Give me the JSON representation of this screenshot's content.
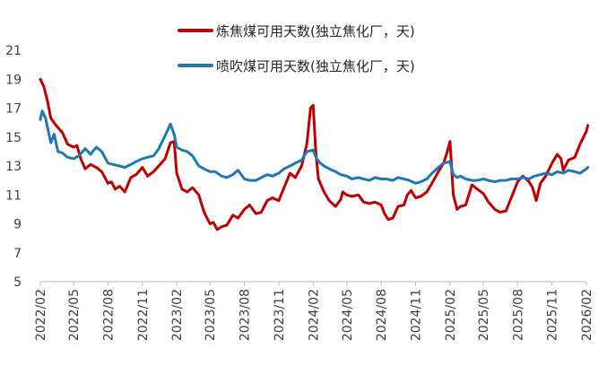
{
  "chart_data": {
    "type": "line",
    "title": "",
    "xlabel": "",
    "ylabel": "",
    "ylim": [
      5,
      21
    ],
    "yticks": [
      5,
      7,
      9,
      11,
      13,
      15,
      17,
      19,
      21
    ],
    "xlim": [
      "2022-02",
      "2026-02"
    ],
    "xtick_labels": [
      "2022/02",
      "2022/05",
      "2022/08",
      "2022/11",
      "2023/02",
      "2023/05",
      "2023/08",
      "2023/11",
      "2024/02",
      "2024/05",
      "2024/08",
      "2024/11",
      "2025/02",
      "2025/05",
      "2025/08",
      "2025/11",
      "2026/02"
    ],
    "grid": false,
    "legend_position": "top",
    "series": [
      {
        "name": "炼焦煤可用天数(独立焦化厂，天)",
        "color": "#c00000",
        "points": [
          [
            "2022-02-01",
            19.0
          ],
          [
            "2022-02-10",
            18.5
          ],
          [
            "2022-02-20",
            17.5
          ],
          [
            "2022-03-01",
            16.3
          ],
          [
            "2022-03-15",
            15.8
          ],
          [
            "2022-04-01",
            15.3
          ],
          [
            "2022-04-15",
            14.5
          ],
          [
            "2022-05-01",
            14.3
          ],
          [
            "2022-05-10",
            14.4
          ],
          [
            "2022-05-20",
            13.5
          ],
          [
            "2022-06-01",
            12.8
          ],
          [
            "2022-06-15",
            13.1
          ],
          [
            "2022-07-01",
            12.9
          ],
          [
            "2022-07-15",
            12.6
          ],
          [
            "2022-08-01",
            11.8
          ],
          [
            "2022-08-10",
            11.9
          ],
          [
            "2022-08-20",
            11.4
          ],
          [
            "2022-09-01",
            11.6
          ],
          [
            "2022-09-15",
            11.2
          ],
          [
            "2022-10-01",
            12.2
          ],
          [
            "2022-10-15",
            12.4
          ],
          [
            "2022-11-01",
            12.9
          ],
          [
            "2022-11-15",
            12.3
          ],
          [
            "2022-12-01",
            12.6
          ],
          [
            "2022-12-15",
            13.0
          ],
          [
            "2023-01-01",
            13.5
          ],
          [
            "2023-01-15",
            14.6
          ],
          [
            "2023-01-25",
            14.7
          ],
          [
            "2023-02-01",
            12.5
          ],
          [
            "2023-02-15",
            11.4
          ],
          [
            "2023-03-01",
            11.2
          ],
          [
            "2023-03-15",
            11.5
          ],
          [
            "2023-04-01",
            11.0
          ],
          [
            "2023-04-15",
            9.8
          ],
          [
            "2023-05-01",
            9.0
          ],
          [
            "2023-05-10",
            9.1
          ],
          [
            "2023-05-20",
            8.6
          ],
          [
            "2023-06-01",
            8.8
          ],
          [
            "2023-06-15",
            8.9
          ],
          [
            "2023-07-01",
            9.6
          ],
          [
            "2023-07-15",
            9.4
          ],
          [
            "2023-08-01",
            10.0
          ],
          [
            "2023-08-15",
            10.3
          ],
          [
            "2023-09-01",
            9.7
          ],
          [
            "2023-09-15",
            9.8
          ],
          [
            "2023-10-01",
            10.6
          ],
          [
            "2023-10-15",
            10.8
          ],
          [
            "2023-11-01",
            10.6
          ],
          [
            "2023-11-15",
            11.5
          ],
          [
            "2023-12-01",
            12.5
          ],
          [
            "2023-12-15",
            12.2
          ],
          [
            "2024-01-01",
            13.0
          ],
          [
            "2024-01-15",
            14.5
          ],
          [
            "2024-01-25",
            17.0
          ],
          [
            "2024-02-01",
            17.2
          ],
          [
            "2024-02-08",
            14.0
          ],
          [
            "2024-02-15",
            12.1
          ],
          [
            "2024-03-01",
            11.2
          ],
          [
            "2024-03-15",
            10.6
          ],
          [
            "2024-04-01",
            10.2
          ],
          [
            "2024-04-15",
            10.7
          ],
          [
            "2024-04-20",
            11.2
          ],
          [
            "2024-05-01",
            11.0
          ],
          [
            "2024-05-15",
            10.9
          ],
          [
            "2024-06-01",
            11.0
          ],
          [
            "2024-06-15",
            10.5
          ],
          [
            "2024-07-01",
            10.4
          ],
          [
            "2024-07-15",
            10.5
          ],
          [
            "2024-08-01",
            10.3
          ],
          [
            "2024-08-10",
            9.7
          ],
          [
            "2024-08-20",
            9.3
          ],
          [
            "2024-09-01",
            9.4
          ],
          [
            "2024-09-15",
            10.2
          ],
          [
            "2024-10-01",
            10.3
          ],
          [
            "2024-10-10",
            11.0
          ],
          [
            "2024-10-20",
            11.3
          ],
          [
            "2024-11-01",
            10.8
          ],
          [
            "2024-11-15",
            10.9
          ],
          [
            "2024-12-01",
            11.2
          ],
          [
            "2024-12-15",
            11.8
          ],
          [
            "2025-01-01",
            12.6
          ],
          [
            "2025-01-15",
            13.2
          ],
          [
            "2025-01-25",
            14.0
          ],
          [
            "2025-02-01",
            14.7
          ],
          [
            "2025-02-10",
            11.0
          ],
          [
            "2025-02-20",
            10.0
          ],
          [
            "2025-03-01",
            10.2
          ],
          [
            "2025-03-15",
            10.3
          ],
          [
            "2025-04-01",
            11.7
          ],
          [
            "2025-04-15",
            11.4
          ],
          [
            "2025-05-01",
            11.1
          ],
          [
            "2025-05-15",
            10.5
          ],
          [
            "2025-06-01",
            10.0
          ],
          [
            "2025-06-15",
            9.8
          ],
          [
            "2025-07-01",
            9.9
          ],
          [
            "2025-07-15",
            10.8
          ],
          [
            "2025-08-01",
            11.9
          ],
          [
            "2025-08-15",
            12.3
          ],
          [
            "2025-09-01",
            11.9
          ],
          [
            "2025-09-10",
            11.5
          ],
          [
            "2025-09-20",
            10.6
          ],
          [
            "2025-10-01",
            11.8
          ],
          [
            "2025-10-15",
            12.3
          ],
          [
            "2025-11-01",
            13.2
          ],
          [
            "2025-11-15",
            13.8
          ],
          [
            "2025-11-25",
            13.5
          ],
          [
            "2025-12-01",
            12.7
          ],
          [
            "2025-12-15",
            13.4
          ],
          [
            "2026-01-01",
            13.6
          ],
          [
            "2026-01-15",
            14.5
          ],
          [
            "2026-02-01",
            15.4
          ],
          [
            "2026-02-05",
            15.8
          ]
        ]
      },
      {
        "name": "喷吹煤可用天数(独立焦化厂，天)",
        "color": "#1f77b4",
        "points": [
          [
            "2022-02-01",
            16.2
          ],
          [
            "2022-02-06",
            16.8
          ],
          [
            "2022-02-15",
            16.3
          ],
          [
            "2022-03-01",
            14.6
          ],
          [
            "2022-03-10",
            15.2
          ],
          [
            "2022-03-20",
            14.0
          ],
          [
            "2022-04-01",
            13.9
          ],
          [
            "2022-04-15",
            13.6
          ],
          [
            "2022-05-01",
            13.5
          ],
          [
            "2022-05-15",
            13.7
          ],
          [
            "2022-06-01",
            14.2
          ],
          [
            "2022-06-15",
            13.8
          ],
          [
            "2022-07-01",
            14.3
          ],
          [
            "2022-07-15",
            14.0
          ],
          [
            "2022-08-01",
            13.2
          ],
          [
            "2022-08-15",
            13.1
          ],
          [
            "2022-09-01",
            13.0
          ],
          [
            "2022-09-15",
            12.9
          ],
          [
            "2022-10-01",
            13.1
          ],
          [
            "2022-10-15",
            13.3
          ],
          [
            "2022-11-01",
            13.5
          ],
          [
            "2022-11-15",
            13.6
          ],
          [
            "2022-12-01",
            13.7
          ],
          [
            "2022-12-15",
            14.2
          ],
          [
            "2023-01-01",
            15.1
          ],
          [
            "2023-01-15",
            15.9
          ],
          [
            "2023-01-25",
            15.2
          ],
          [
            "2023-02-01",
            14.3
          ],
          [
            "2023-02-15",
            14.1
          ],
          [
            "2023-03-01",
            14.0
          ],
          [
            "2023-03-15",
            13.7
          ],
          [
            "2023-04-01",
            13.0
          ],
          [
            "2023-04-15",
            12.8
          ],
          [
            "2023-05-01",
            12.6
          ],
          [
            "2023-05-15",
            12.6
          ],
          [
            "2023-06-01",
            12.3
          ],
          [
            "2023-06-15",
            12.2
          ],
          [
            "2023-07-01",
            12.4
          ],
          [
            "2023-07-15",
            12.7
          ],
          [
            "2023-08-01",
            12.1
          ],
          [
            "2023-08-15",
            12.0
          ],
          [
            "2023-09-01",
            12.0
          ],
          [
            "2023-09-15",
            12.2
          ],
          [
            "2023-10-01",
            12.4
          ],
          [
            "2023-10-15",
            12.3
          ],
          [
            "2023-11-01",
            12.5
          ],
          [
            "2023-11-15",
            12.8
          ],
          [
            "2023-12-01",
            13.0
          ],
          [
            "2023-12-15",
            13.2
          ],
          [
            "2024-01-01",
            13.4
          ],
          [
            "2024-01-15",
            14.0
          ],
          [
            "2024-02-01",
            14.1
          ],
          [
            "2024-02-10",
            13.5
          ],
          [
            "2024-02-20",
            13.2
          ],
          [
            "2024-03-01",
            13.0
          ],
          [
            "2024-03-15",
            12.8
          ],
          [
            "2024-04-01",
            12.6
          ],
          [
            "2024-04-15",
            12.4
          ],
          [
            "2024-05-01",
            12.3
          ],
          [
            "2024-05-15",
            12.1
          ],
          [
            "2024-06-01",
            12.2
          ],
          [
            "2024-06-15",
            12.1
          ],
          [
            "2024-07-01",
            12.0
          ],
          [
            "2024-07-15",
            12.2
          ],
          [
            "2024-08-01",
            12.1
          ],
          [
            "2024-08-15",
            12.1
          ],
          [
            "2024-09-01",
            12.0
          ],
          [
            "2024-09-15",
            12.2
          ],
          [
            "2024-10-01",
            12.1
          ],
          [
            "2024-10-15",
            12.0
          ],
          [
            "2024-11-01",
            11.8
          ],
          [
            "2024-11-15",
            11.9
          ],
          [
            "2024-12-01",
            12.1
          ],
          [
            "2024-12-15",
            12.5
          ],
          [
            "2025-01-01",
            12.9
          ],
          [
            "2025-01-15",
            13.2
          ],
          [
            "2025-02-01",
            13.3
          ],
          [
            "2025-02-10",
            12.4
          ],
          [
            "2025-02-20",
            12.2
          ],
          [
            "2025-03-01",
            12.3
          ],
          [
            "2025-03-15",
            12.1
          ],
          [
            "2025-04-01",
            12.0
          ],
          [
            "2025-04-15",
            12.0
          ],
          [
            "2025-05-01",
            12.1
          ],
          [
            "2025-05-15",
            12.0
          ],
          [
            "2025-06-01",
            11.9
          ],
          [
            "2025-06-15",
            12.0
          ],
          [
            "2025-07-01",
            12.0
          ],
          [
            "2025-07-15",
            12.1
          ],
          [
            "2025-08-01",
            12.1
          ],
          [
            "2025-08-15",
            12.2
          ],
          [
            "2025-09-01",
            12.1
          ],
          [
            "2025-09-15",
            12.3
          ],
          [
            "2025-10-01",
            12.4
          ],
          [
            "2025-10-15",
            12.5
          ],
          [
            "2025-11-01",
            12.4
          ],
          [
            "2025-11-15",
            12.6
          ],
          [
            "2025-12-01",
            12.5
          ],
          [
            "2025-12-15",
            12.7
          ],
          [
            "2026-01-01",
            12.6
          ],
          [
            "2026-01-15",
            12.5
          ],
          [
            "2026-02-01",
            12.8
          ],
          [
            "2026-02-05",
            12.9
          ]
        ]
      }
    ]
  }
}
